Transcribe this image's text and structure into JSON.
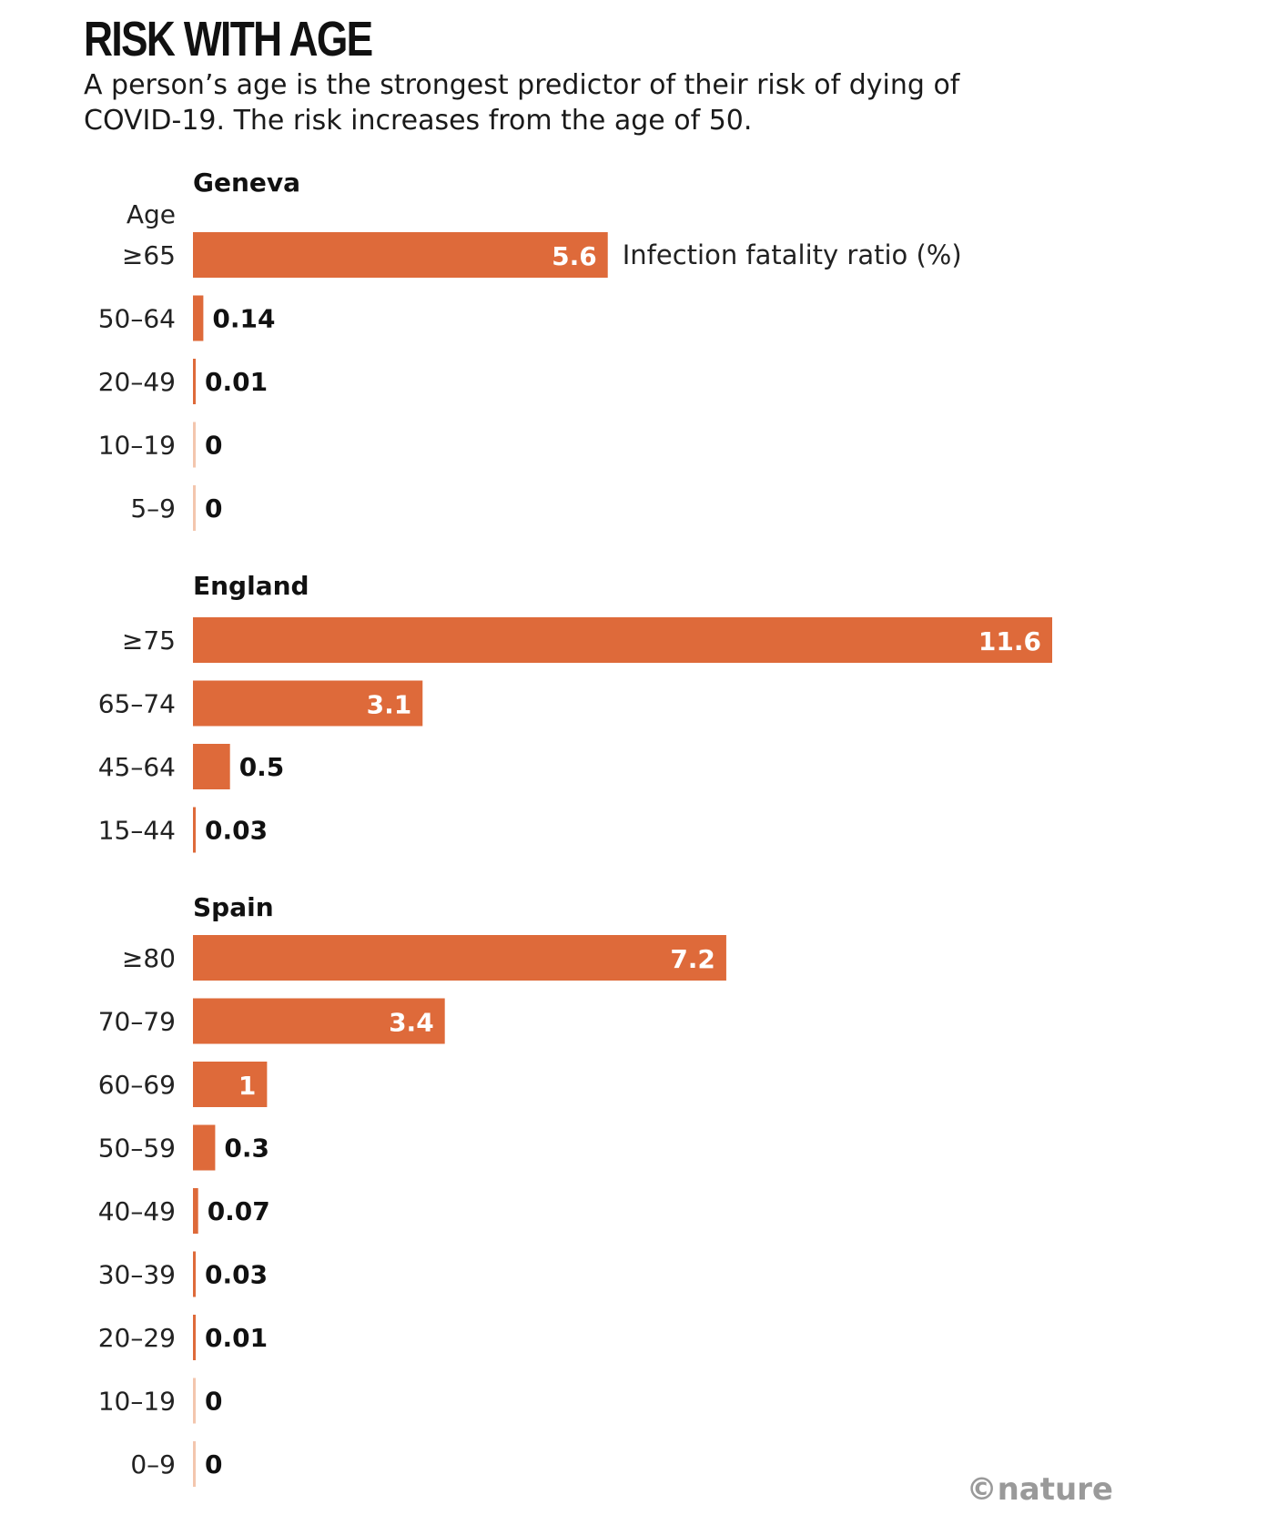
{
  "header": {
    "title": "RISK WITH AGE",
    "subtitle": "A person’s age is the strongest predictor of their risk of dying of COVID-19. The risk increases from the age of 50."
  },
  "credit": "©nature",
  "colors": {
    "bar": "#de6a3a",
    "tint": "#f3c6ae"
  },
  "chart_data": {
    "type": "bar",
    "orientation": "horizontal",
    "category_axis_label": "Age",
    "value_label": "Infection fatality ratio (%)",
    "groups": [
      {
        "name": "Geneva",
        "categories": [
          "≥65",
          "50–64",
          "20–49",
          "10–19",
          "5–9"
        ],
        "values": [
          5.6,
          0.14,
          0.01,
          0,
          0
        ],
        "labels": [
          "5.6",
          "0.14",
          "0.01",
          "0",
          "0"
        ]
      },
      {
        "name": "England",
        "categories": [
          "≥75",
          "65–74",
          "45–64",
          "15–44"
        ],
        "values": [
          11.6,
          3.1,
          0.5,
          0.03
        ],
        "labels": [
          "11.6",
          "3.1",
          "0.5",
          "0.03"
        ]
      },
      {
        "name": "Spain",
        "categories": [
          "≥80",
          "70–79",
          "60–69",
          "50–59",
          "40–49",
          "30–39",
          "20–29",
          "10–19",
          "0–9"
        ],
        "values": [
          7.2,
          3.4,
          1,
          0.3,
          0.07,
          0.03,
          0.01,
          0,
          0
        ],
        "labels": [
          "7.2",
          "3.4",
          "1",
          "0.3",
          "0.07",
          "0.03",
          "0.01",
          "0",
          "0"
        ]
      }
    ],
    "xlim": [
      0,
      11.6
    ],
    "grid": false,
    "legend": "none"
  }
}
